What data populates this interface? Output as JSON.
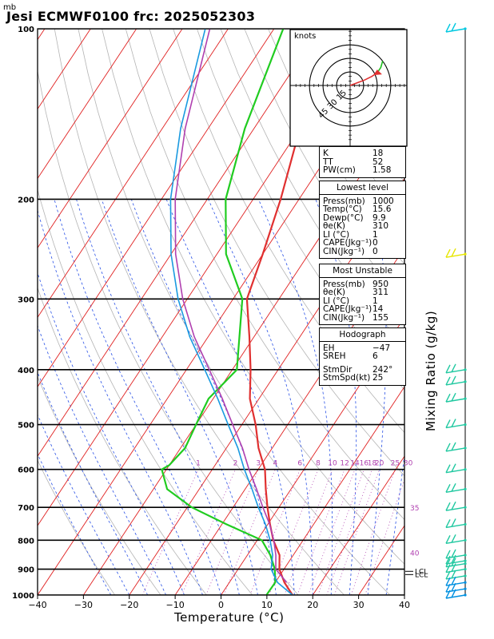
{
  "header": {
    "unit": "mb",
    "title": "Jesi ECMWF0100  frc: 2025052303",
    "xlabel": "Temperature (°C)",
    "mixing_label": "Mixing Ratio (g/kg)"
  },
  "hodograph": {
    "unit": "knots",
    "rings": [
      "15",
      "30",
      "45"
    ]
  },
  "indices": [
    {
      "k": "K",
      "v": "18"
    },
    {
      "k": "TT",
      "v": "52"
    },
    {
      "k": "PW(cm)",
      "v": "1.58"
    }
  ],
  "lowest_level": {
    "title": "Lowest level",
    "rows": [
      {
        "k": "Press(mb)",
        "v": "1000"
      },
      {
        "k": "Temp(°C)",
        "v": "15.6"
      },
      {
        "k": "Dewp(°C)",
        "v": "9.9"
      },
      {
        "k": "θe(K)",
        "v": "310"
      },
      {
        "k": "LI (°C)",
        "v": "1"
      },
      {
        "k": "CAPE(Jkg⁻¹)",
        "v": "0"
      },
      {
        "k": "CIN(Jkg⁻¹)",
        "v": "0"
      }
    ]
  },
  "most_unstable": {
    "title": "Most Unstable",
    "rows": [
      {
        "k": "Press(mb)",
        "v": "950"
      },
      {
        "k": "θe(K)",
        "v": "311"
      },
      {
        "k": "LI (°C)",
        "v": "1"
      },
      {
        "k": "CAPE(Jkg⁻¹)",
        "v": "14"
      },
      {
        "k": "CIN(Jkg⁻¹)",
        "v": "155"
      }
    ]
  },
  "hodo_table": {
    "title": "Hodograph",
    "rows": [
      {
        "k": "EH",
        "v": "−47"
      },
      {
        "k": "SREH",
        "v": "6"
      },
      {
        "k": "",
        "v": ""
      },
      {
        "k": "StmDir",
        "v": "242°"
      },
      {
        "k": "StmSpd(kt)",
        "v": "25"
      }
    ]
  },
  "chart_data": {
    "type": "line",
    "xlabel": "Temperature (°C)",
    "ylabel": "mb",
    "xlim": [
      -40,
      40
    ],
    "ylim": [
      1000,
      100
    ],
    "x_ticks": [
      -40,
      -30,
      -20,
      -10,
      0,
      10,
      20,
      30,
      40
    ],
    "p_ticks": [
      100,
      200,
      300,
      400,
      500,
      600,
      700,
      800,
      900,
      1000
    ],
    "mixing_ratio_labels": [
      "1",
      "2",
      "3",
      "4",
      "6",
      "8",
      "10",
      "12",
      "14",
      "16",
      "18",
      "20",
      "25",
      "30",
      "35",
      "40"
    ],
    "lcl_labels": [
      "LCL",
      "LCL"
    ],
    "series": [
      {
        "name": "",
        "role": "temperature",
        "color": "#e03030",
        "points": [
          [
            15.6,
            1000
          ],
          [
            12,
            950
          ],
          [
            9,
            900
          ],
          [
            7,
            850
          ],
          [
            3.5,
            800
          ],
          [
            0.5,
            750
          ],
          [
            -2.5,
            700
          ],
          [
            -5.5,
            650
          ],
          [
            -8.5,
            600
          ],
          [
            -13,
            550
          ],
          [
            -17,
            500
          ],
          [
            -22,
            450
          ],
          [
            -26,
            400
          ],
          [
            -31,
            350
          ],
          [
            -37,
            300
          ],
          [
            -40,
            250
          ],
          [
            -44,
            200
          ],
          [
            -50,
            150
          ],
          [
            -58,
            100
          ]
        ]
      },
      {
        "name": "",
        "role": "dewpoint",
        "color": "#20cc20",
        "points": [
          [
            9.9,
            1000
          ],
          [
            10,
            950
          ],
          [
            8,
            900
          ],
          [
            5,
            850
          ],
          [
            1,
            800
          ],
          [
            -9,
            750
          ],
          [
            -19,
            700
          ],
          [
            -27,
            650
          ],
          [
            -31,
            600
          ],
          [
            -30,
            590
          ],
          [
            -29,
            550
          ],
          [
            -30,
            500
          ],
          [
            -31,
            450
          ],
          [
            -29,
            400
          ],
          [
            -38,
            300
          ],
          [
            -48,
            250
          ],
          [
            -56,
            200
          ],
          [
            -62,
            150
          ],
          [
            -68,
            100
          ]
        ]
      },
      {
        "name": "",
        "role": "parcel-lowest",
        "color": "#1a9ae0",
        "points": [
          [
            15.6,
            1000
          ],
          [
            10.5,
            950
          ],
          [
            7.2,
            900
          ],
          [
            5.5,
            850
          ],
          [
            2.8,
            800
          ],
          [
            -0.5,
            750
          ],
          [
            -4.5,
            700
          ],
          [
            -8.5,
            650
          ],
          [
            -13,
            600
          ],
          [
            -17.5,
            550
          ],
          [
            -23,
            500
          ],
          [
            -29,
            450
          ],
          [
            -36,
            400
          ],
          [
            -44,
            350
          ],
          [
            -52,
            300
          ],
          [
            -60,
            250
          ],
          [
            -68,
            200
          ],
          [
            -76,
            150
          ],
          [
            -85,
            100
          ]
        ]
      },
      {
        "name": "",
        "role": "parcel-mu",
        "color": "#b040b0",
        "points": [
          [
            12.5,
            950
          ],
          [
            8.2,
            900
          ],
          [
            6.2,
            850
          ],
          [
            3.6,
            800
          ],
          [
            0.4,
            750
          ],
          [
            -3.5,
            700
          ],
          [
            -7.5,
            650
          ],
          [
            -12,
            600
          ],
          [
            -16.5,
            550
          ],
          [
            -22,
            500
          ],
          [
            -28,
            450
          ],
          [
            -35,
            400
          ],
          [
            -43,
            350
          ],
          [
            -51,
            300
          ],
          [
            -59,
            250
          ],
          [
            -67,
            200
          ],
          [
            -75,
            150
          ],
          [
            -84,
            100
          ]
        ]
      }
    ],
    "wind_barbs_pressure": [
      100,
      250,
      400,
      420,
      450,
      500,
      550,
      600,
      650,
      700,
      750,
      800,
      850,
      870,
      880,
      900,
      925,
      950,
      975,
      1000
    ],
    "hodograph_points_kt": [
      [
        0,
        0
      ],
      [
        8,
        3
      ],
      [
        16,
        6
      ],
      [
        24,
        10
      ],
      [
        30,
        14
      ],
      [
        34,
        20
      ],
      [
        36,
        27
      ]
    ]
  }
}
